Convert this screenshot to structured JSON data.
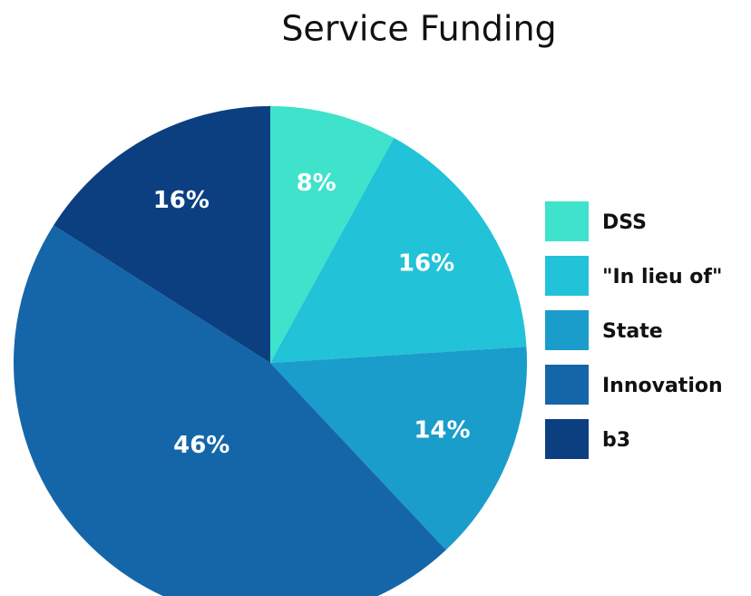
{
  "chart_data": {
    "type": "pie",
    "title": "Service Funding",
    "categories": [
      "DSS",
      "\"In lieu of\"",
      "State",
      "Innovation",
      "b3"
    ],
    "values": [
      8,
      16,
      14,
      46,
      16
    ],
    "value_labels": [
      "8%",
      "16%",
      "14%",
      "46%",
      "16%"
    ],
    "colors": [
      "#3fe2cb",
      "#22c2d8",
      "#1a9dcb",
      "#1566a9",
      "#0c3f80"
    ],
    "legend": "right"
  }
}
